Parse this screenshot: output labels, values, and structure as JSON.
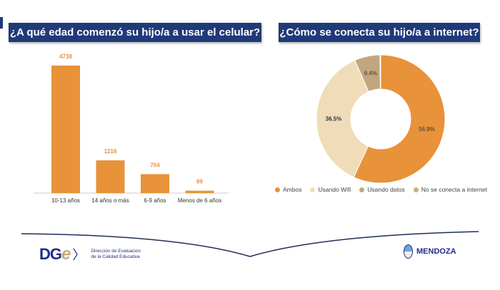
{
  "chart_data": [
    {
      "type": "bar",
      "title": "¿A qué edad comenzó su hijo/a a usar el celular?",
      "categories": [
        "10-13 años",
        "14 años o más",
        "6-9 años",
        "Menos de 6 años"
      ],
      "values": [
        4738,
        1216,
        704,
        89
      ],
      "value_labels": [
        "4738",
        "1216",
        "704",
        "89"
      ],
      "color": "#e8923a",
      "ylim": [
        0,
        4738
      ]
    },
    {
      "type": "pie",
      "subtype": "donut",
      "title": "¿Cómo se conecta su hijo/a a internet?",
      "slices": [
        {
          "name": "Ambos",
          "value": 56.9,
          "label": "56.9%",
          "color": "#e8923a"
        },
        {
          "name": "Usando Wifi",
          "value": 36.5,
          "label": "36.5%",
          "color": "#f0dcb8"
        },
        {
          "name": "Usando datos",
          "value": 6.4,
          "label": "6.4%",
          "color": "#c2a67e"
        },
        {
          "name": "No se conecta a internet",
          "value": null,
          "label": "",
          "color": "#c9ad82"
        }
      ],
      "legend_position": "bottom"
    }
  ],
  "footer": {
    "logo_text": "DGe",
    "org_line1": "Dirección de Evaluación",
    "org_line2": "de la Calidad Educativa",
    "province": "MENDOZA"
  }
}
